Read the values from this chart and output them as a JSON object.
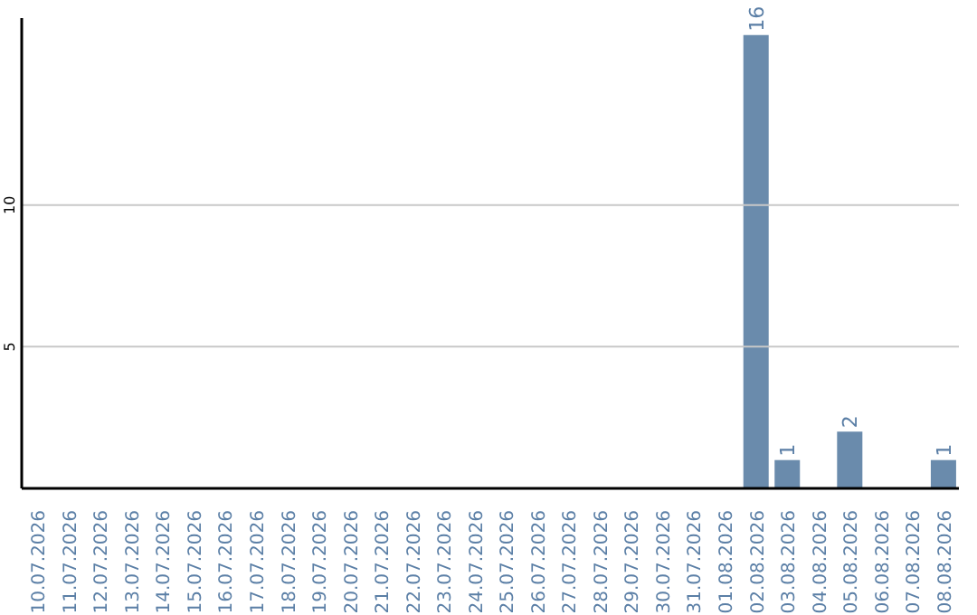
{
  "chart_data": {
    "type": "bar",
    "categories": [
      "10.07.2026",
      "11.07.2026",
      "12.07.2026",
      "13.07.2026",
      "14.07.2026",
      "15.07.2026",
      "16.07.2026",
      "17.07.2026",
      "18.07.2026",
      "19.07.2026",
      "20.07.2026",
      "21.07.2026",
      "22.07.2026",
      "23.07.2026",
      "24.07.2026",
      "25.07.2026",
      "26.07.2026",
      "27.07.2026",
      "28.07.2026",
      "29.07.2026",
      "30.07.2026",
      "31.07.2026",
      "01.08.2026",
      "02.08.2026",
      "03.08.2026",
      "04.08.2026",
      "05.08.2026",
      "06.08.2026",
      "07.08.2026",
      "08.08.2026"
    ],
    "values": [
      0,
      0,
      0,
      0,
      0,
      0,
      0,
      0,
      0,
      0,
      0,
      0,
      0,
      0,
      0,
      0,
      0,
      0,
      0,
      0,
      0,
      0,
      0,
      16,
      1,
      0,
      2,
      0,
      0,
      1
    ],
    "value_labels": [
      null,
      null,
      null,
      null,
      null,
      null,
      null,
      null,
      null,
      null,
      null,
      null,
      null,
      null,
      null,
      null,
      null,
      null,
      null,
      null,
      null,
      null,
      null,
      "16",
      "1",
      null,
      "2",
      null,
      null,
      "1"
    ],
    "color": "#6a8bac",
    "ylim": [
      0,
      16.6
    ],
    "yticks": [
      5,
      10
    ],
    "grid": "y"
  }
}
